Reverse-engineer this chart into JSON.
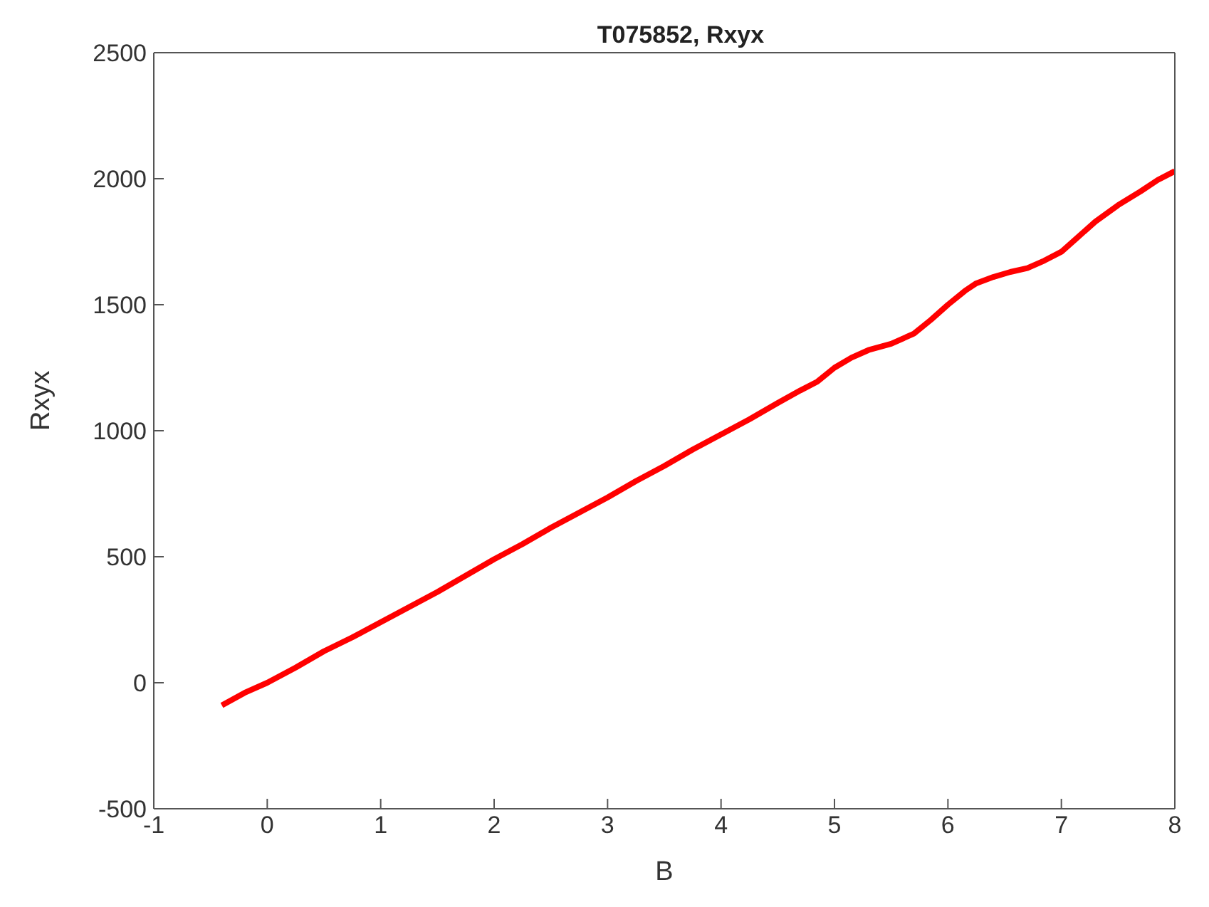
{
  "chart_data": {
    "type": "line",
    "title": "T075852, Rxyx",
    "xlabel": "B",
    "ylabel": "Rxyx",
    "xlim": [
      -1,
      8
    ],
    "xticks": [
      -1,
      0,
      1,
      2,
      3,
      4,
      5,
      6,
      7,
      8
    ],
    "ylim": [
      -500,
      2500
    ],
    "yticks": [
      -500,
      0,
      500,
      1000,
      1500,
      2000,
      2500
    ],
    "grid": false,
    "legend": false,
    "marker": "none",
    "line_style": "solid",
    "series": [
      {
        "color": "#ff0000",
        "x": [
          -0.4,
          -0.2,
          0,
          0.25,
          0.5,
          0.75,
          1,
          1.25,
          1.5,
          1.75,
          2,
          2.25,
          2.5,
          2.75,
          3,
          3.25,
          3.5,
          3.75,
          4,
          4.25,
          4.5,
          4.7,
          4.85,
          5,
          5.15,
          5.3,
          5.5,
          5.7,
          5.85,
          6,
          6.15,
          6.25,
          6.4,
          6.55,
          6.7,
          6.85,
          7,
          7.15,
          7.3,
          7.5,
          7.7,
          7.85,
          8
        ],
        "values": [
          -90,
          -40,
          0,
          60,
          125,
          180,
          240,
          300,
          360,
          425,
          490,
          550,
          615,
          675,
          735,
          800,
          860,
          925,
          985,
          1045,
          1110,
          1160,
          1195,
          1250,
          1290,
          1320,
          1345,
          1385,
          1440,
          1500,
          1555,
          1585,
          1610,
          1630,
          1645,
          1675,
          1710,
          1770,
          1830,
          1895,
          1950,
          1995,
          2030
        ]
      }
    ]
  }
}
